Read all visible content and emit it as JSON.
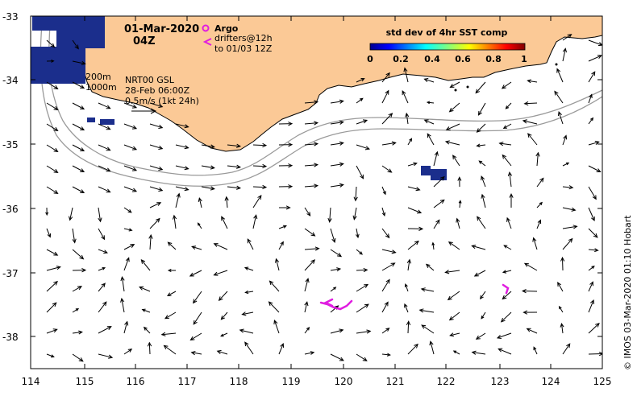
{
  "map": {
    "date": "01-Mar-2020",
    "time": "04Z",
    "legend_argo": "Argo",
    "legend_drifters_1": "drifters@12h",
    "legend_drifters_2": "to 01/03 12Z",
    "contour_200": "200m",
    "contour_1000": "1000m",
    "product": "NRT00 GSL",
    "product_time": "28-Feb 06:00Z",
    "scale_label": "0.5m/s (1kt 24h)",
    "colorbar_title": "std dev of 4hr SST comp",
    "colorbar_ticks": [
      "0",
      "0.2",
      "0.4",
      "0.6",
      "0.8",
      "1"
    ],
    "credit": "© IMOS 03-Mar-2020 01:10 Hobart",
    "x_ticks": [
      "114",
      "115",
      "116",
      "117",
      "118",
      "119",
      "120",
      "121",
      "122",
      "123",
      "124",
      "125"
    ],
    "y_ticks": [
      "-33",
      "-34",
      "-35",
      "-36",
      "-37",
      "-38"
    ],
    "colors": {
      "land": "#fbc996",
      "argo": "#e01de0",
      "sst_high": "#1b2e8c",
      "contour": "#9a9a9a"
    }
  }
}
